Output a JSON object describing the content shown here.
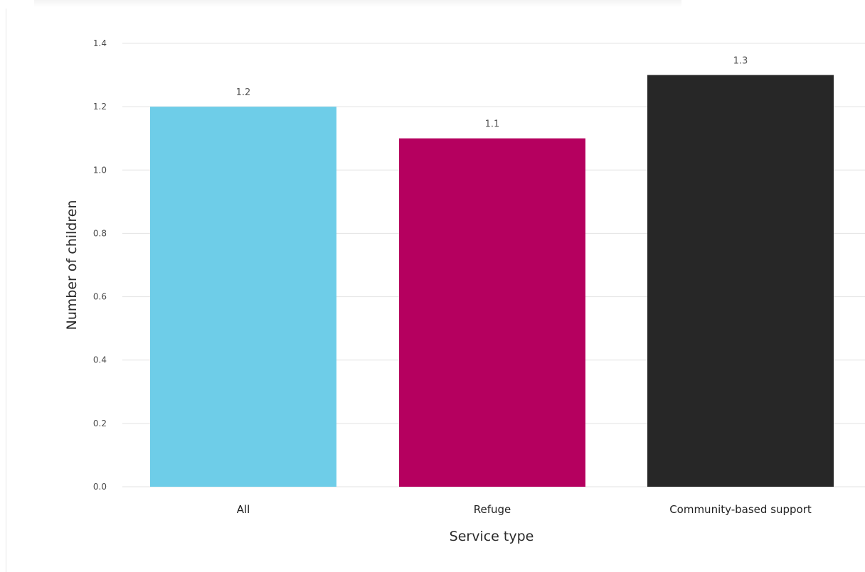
{
  "chart_data": {
    "type": "bar",
    "categories": [
      "All",
      "Refuge",
      "Community-based support"
    ],
    "values": [
      1.2,
      1.1,
      1.3
    ],
    "data_labels": [
      "1.2",
      "1.1",
      "1.3"
    ],
    "colors": [
      "#6ecde8",
      "#b5005f",
      "#272727"
    ],
    "xlabel": "Service type",
    "ylabel": "Number of children",
    "ylim": [
      0,
      1.4
    ],
    "yticks": [
      0,
      0.2,
      0.4,
      0.6,
      0.8,
      1.0,
      1.2,
      1.4
    ],
    "ytick_labels": [
      "0.0",
      "0.2",
      "0.4",
      "0.6",
      "0.8",
      "1.0",
      "1.2",
      "1.4"
    ],
    "grid": true,
    "legend": "none"
  }
}
